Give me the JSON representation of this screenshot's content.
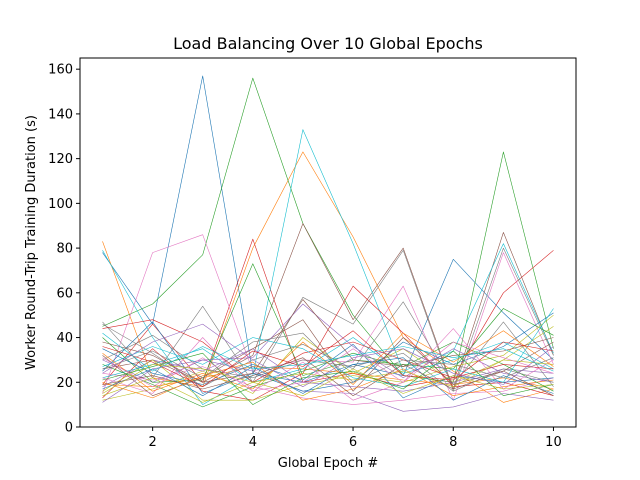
{
  "chart_data": {
    "type": "line",
    "title": "Load Balancing Over 10 Global Epochs",
    "xlabel": "Global Epoch #",
    "ylabel": "Worker Round-Trip Training Duration (s)",
    "xlim": [
      0.55,
      10.45
    ],
    "ylim": [
      0,
      165
    ],
    "x_ticks": [
      2,
      4,
      6,
      8,
      10
    ],
    "y_ticks": [
      0,
      20,
      40,
      60,
      80,
      100,
      120,
      140,
      160
    ],
    "grid": false,
    "legend": "none",
    "x": [
      1,
      2,
      3,
      4,
      5,
      6,
      7,
      8,
      9,
      10
    ],
    "palette": [
      "#1f77b4",
      "#ff7f0e",
      "#2ca02c",
      "#d62728",
      "#9467bd",
      "#8c564b",
      "#e377c2",
      "#7f7f7f",
      "#bcbd22",
      "#17becf"
    ],
    "series": [
      {
        "values": [
          78,
          46,
          157,
          24,
          20,
          28,
          23,
          75,
          51,
          30
        ]
      },
      {
        "values": [
          83,
          22,
          18,
          80,
          123,
          85,
          40,
          25,
          11,
          17
        ]
      },
      {
        "values": [
          45,
          55,
          77,
          156,
          91,
          50,
          23,
          20,
          123,
          35
        ]
      },
      {
        "values": [
          19,
          46,
          20,
          84,
          20,
          24,
          18,
          22,
          60,
          79
        ]
      },
      {
        "values": [
          30,
          20,
          30,
          25,
          16,
          15,
          7,
          9,
          15,
          12
        ]
      },
      {
        "values": [
          26,
          30,
          20,
          32,
          91,
          48,
          80,
          17,
          87,
          32
        ]
      },
      {
        "values": [
          15,
          78,
          86,
          25,
          30,
          29,
          63,
          12,
          78,
          28
        ]
      },
      {
        "values": [
          47,
          22,
          54,
          20,
          58,
          46,
          79,
          16,
          80,
          32
        ]
      },
      {
        "values": [
          12,
          17,
          25,
          15,
          40,
          24,
          35,
          20,
          30,
          45
        ]
      },
      {
        "values": [
          79,
          40,
          10,
          23,
          133,
          82,
          25,
          34,
          82,
          33
        ]
      },
      {
        "values": [
          25,
          47,
          15,
          24,
          16,
          20,
          38,
          28,
          36,
          51
        ]
      },
      {
        "values": [
          19,
          18,
          22,
          27,
          26,
          24,
          21,
          19,
          22,
          17
        ]
      },
      {
        "values": [
          40,
          20,
          21,
          73,
          23,
          30,
          28,
          26,
          53,
          41
        ]
      },
      {
        "values": [
          13,
          35,
          16,
          12,
          24,
          63,
          42,
          18,
          20,
          14
        ]
      },
      {
        "values": [
          18,
          30,
          25,
          35,
          20,
          18,
          16,
          20,
          26,
          24
        ]
      },
      {
        "values": [
          32,
          14,
          22,
          35,
          48,
          16,
          40,
          19,
          25,
          38
        ]
      },
      {
        "values": [
          24,
          21,
          27,
          18,
          13,
          10,
          12,
          15,
          16,
          22
        ]
      },
      {
        "values": [
          46,
          33,
          18,
          30,
          37,
          26,
          56,
          19,
          47,
          18
        ]
      },
      {
        "values": [
          16,
          30,
          12,
          12,
          19,
          23,
          20,
          27,
          32,
          50
        ]
      },
      {
        "values": [
          22,
          28,
          35,
          20,
          26,
          40,
          24,
          30,
          38,
          26
        ]
      },
      {
        "values": [
          35,
          24,
          19,
          28,
          21,
          37,
          13,
          23,
          20,
          22
        ]
      },
      {
        "values": [
          20,
          13,
          23,
          29,
          12,
          17,
          26,
          14,
          18,
          21
        ]
      },
      {
        "values": [
          28,
          19,
          9,
          18,
          25,
          33,
          27,
          38,
          28,
          16
        ]
      },
      {
        "values": [
          44,
          48,
          38,
          20,
          33,
          38,
          30,
          22,
          28,
          26
        ]
      },
      {
        "values": [
          11,
          26,
          30,
          31,
          55,
          36,
          22,
          35,
          24,
          20
        ]
      },
      {
        "values": [
          38,
          32,
          20,
          24,
          57,
          30,
          27,
          32,
          34,
          40
        ]
      },
      {
        "values": [
          22,
          15,
          40,
          16,
          29,
          12,
          20,
          44,
          17,
          30
        ]
      },
      {
        "values": [
          30,
          41,
          26,
          22,
          30,
          27,
          33,
          16,
          26,
          20
        ]
      },
      {
        "values": [
          14,
          22,
          11,
          20,
          24,
          21,
          25,
          18,
          30,
          28
        ]
      },
      {
        "values": [
          27,
          36,
          28,
          40,
          35,
          22,
          18,
          26,
          20,
          53
        ]
      },
      {
        "values": [
          17,
          26,
          14,
          27,
          15,
          28,
          31,
          12,
          23,
          15
        ]
      },
      {
        "values": [
          33,
          16,
          24,
          17,
          38,
          19,
          42,
          29,
          43,
          27
        ]
      },
      {
        "values": [
          21,
          27,
          33,
          10,
          22,
          25,
          17,
          34,
          14,
          19
        ]
      },
      {
        "values": [
          36,
          29,
          18,
          34,
          27,
          43,
          23,
          21,
          38,
          34
        ]
      },
      {
        "values": [
          24,
          38,
          46,
          30,
          18,
          31,
          35,
          24,
          19,
          36
        ]
      },
      {
        "values": [
          19,
          23,
          17,
          23,
          31,
          14,
          28,
          17,
          25,
          14
        ]
      },
      {
        "values": [
          31,
          18,
          31,
          16,
          20,
          35,
          20,
          38,
          31,
          24
        ]
      },
      {
        "values": [
          26,
          34,
          22,
          38,
          42,
          20,
          30,
          28,
          22,
          31
        ]
      },
      {
        "values": [
          15,
          28,
          26,
          20,
          14,
          26,
          15,
          23,
          17,
          19
        ]
      },
      {
        "values": [
          42,
          25,
          36,
          26,
          28,
          32,
          36,
          31,
          35,
          25
        ]
      }
    ]
  }
}
